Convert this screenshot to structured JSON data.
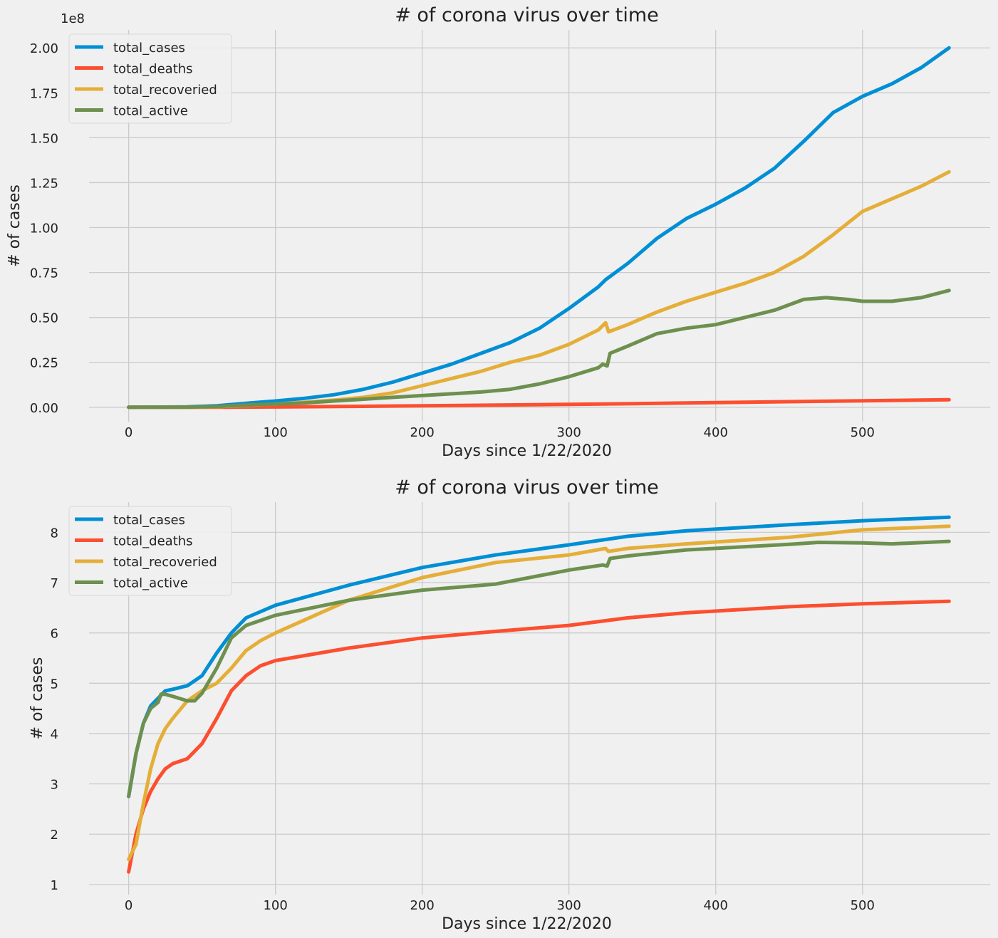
{
  "colors": {
    "background": "#f0f0f0",
    "grid": "#cbcbcb",
    "total_cases": "#008fd5",
    "total_deaths": "#fc4f30",
    "total_recoveried": "#e5ae38",
    "total_active": "#6d904f"
  },
  "chart_data": [
    {
      "type": "line",
      "title": "# of corona virus over time",
      "xlabel": "Days since 1/22/2020",
      "ylabel": "# of cases",
      "offset_text": "1e8",
      "xlim": [
        -27,
        587
      ],
      "ylim": [
        -0.08,
        2.1
      ],
      "xticks": [
        0,
        100,
        200,
        300,
        400,
        500
      ],
      "yticks": [
        0.0,
        0.25,
        0.5,
        0.75,
        1.0,
        1.25,
        1.5,
        1.75,
        2.0
      ],
      "xtick_labels": [
        "0",
        "100",
        "200",
        "300",
        "400",
        "500"
      ],
      "ytick_labels": [
        "0.00",
        "0.25",
        "0.50",
        "0.75",
        "1.00",
        "1.25",
        "1.50",
        "1.75",
        "2.00"
      ],
      "grid": true,
      "legend": "top-left",
      "series": [
        {
          "name": "total_cases",
          "color_key": "total_cases",
          "x": [
            0,
            40,
            60,
            80,
            100,
            120,
            140,
            160,
            180,
            200,
            220,
            240,
            260,
            280,
            300,
            320,
            325,
            340,
            360,
            380,
            400,
            420,
            440,
            460,
            480,
            500,
            520,
            540,
            559
          ],
          "y": [
            0,
            0.002,
            0.008,
            0.022,
            0.035,
            0.05,
            0.07,
            0.1,
            0.14,
            0.19,
            0.24,
            0.3,
            0.36,
            0.44,
            0.55,
            0.67,
            0.71,
            0.8,
            0.94,
            1.05,
            1.13,
            1.22,
            1.33,
            1.48,
            1.64,
            1.73,
            1.8,
            1.89,
            2.0
          ]
        },
        {
          "name": "total_deaths",
          "color_key": "total_deaths",
          "x": [
            0,
            60,
            100,
            200,
            300,
            400,
            500,
            559
          ],
          "y": [
            0,
            0.0005,
            0.0015,
            0.008,
            0.016,
            0.026,
            0.036,
            0.042
          ]
        },
        {
          "name": "total_recoveried",
          "color_key": "total_recoveried",
          "x": [
            0,
            40,
            60,
            80,
            100,
            120,
            140,
            160,
            180,
            200,
            220,
            240,
            260,
            280,
            300,
            320,
            325,
            327,
            340,
            360,
            380,
            400,
            420,
            440,
            460,
            480,
            500,
            520,
            540,
            559
          ],
          "y": [
            0,
            0.0005,
            0.003,
            0.01,
            0.018,
            0.028,
            0.04,
            0.055,
            0.08,
            0.12,
            0.16,
            0.2,
            0.25,
            0.29,
            0.35,
            0.43,
            0.47,
            0.42,
            0.46,
            0.53,
            0.59,
            0.64,
            0.69,
            0.75,
            0.84,
            0.96,
            1.09,
            1.16,
            1.23,
            1.31
          ]
        },
        {
          "name": "total_active",
          "color_key": "total_active",
          "x": [
            0,
            40,
            60,
            80,
            100,
            120,
            140,
            160,
            180,
            200,
            220,
            240,
            260,
            280,
            300,
            320,
            323,
            326,
            328,
            340,
            360,
            380,
            400,
            420,
            440,
            460,
            475,
            490,
            500,
            520,
            540,
            559
          ],
          "y": [
            0,
            0.001,
            0.004,
            0.012,
            0.018,
            0.024,
            0.035,
            0.045,
            0.055,
            0.065,
            0.075,
            0.085,
            0.1,
            0.13,
            0.17,
            0.22,
            0.24,
            0.23,
            0.3,
            0.34,
            0.41,
            0.44,
            0.46,
            0.5,
            0.54,
            0.6,
            0.61,
            0.6,
            0.59,
            0.59,
            0.61,
            0.65
          ]
        }
      ]
    },
    {
      "type": "line",
      "title": "# of corona virus over time",
      "xlabel": "Days since 1/22/2020",
      "ylabel": "# of cases",
      "xlim": [
        -27,
        587
      ],
      "ylim": [
        0.8,
        8.6
      ],
      "xticks": [
        0,
        100,
        200,
        300,
        400,
        500
      ],
      "yticks": [
        1,
        2,
        3,
        4,
        5,
        6,
        7,
        8
      ],
      "xtick_labels": [
        "0",
        "100",
        "200",
        "300",
        "400",
        "500"
      ],
      "ytick_labels": [
        "1",
        "2",
        "3",
        "4",
        "5",
        "6",
        "7",
        "8"
      ],
      "grid": true,
      "legend": "top-left",
      "series": [
        {
          "name": "total_cases",
          "color_key": "total_cases",
          "x": [
            0,
            5,
            10,
            15,
            20,
            25,
            30,
            40,
            50,
            60,
            70,
            80,
            100,
            150,
            200,
            250,
            300,
            340,
            380,
            450,
            500,
            559
          ],
          "y": [
            2.75,
            3.6,
            4.2,
            4.55,
            4.7,
            4.85,
            4.88,
            4.95,
            5.15,
            5.6,
            6.0,
            6.3,
            6.55,
            6.95,
            7.3,
            7.55,
            7.75,
            7.92,
            8.03,
            8.15,
            8.23,
            8.3
          ]
        },
        {
          "name": "total_deaths",
          "color_key": "total_deaths",
          "x": [
            0,
            5,
            10,
            15,
            20,
            25,
            30,
            40,
            50,
            60,
            70,
            80,
            90,
            100,
            150,
            200,
            250,
            300,
            340,
            380,
            450,
            500,
            559
          ],
          "y": [
            1.25,
            2.0,
            2.5,
            2.85,
            3.1,
            3.3,
            3.4,
            3.5,
            3.8,
            4.3,
            4.85,
            5.15,
            5.35,
            5.45,
            5.7,
            5.9,
            6.03,
            6.15,
            6.3,
            6.4,
            6.52,
            6.58,
            6.63
          ]
        },
        {
          "name": "total_recoveried",
          "color_key": "total_recoveried",
          "x": [
            0,
            5,
            10,
            15,
            20,
            25,
            30,
            40,
            50,
            60,
            70,
            80,
            90,
            100,
            150,
            200,
            250,
            300,
            325,
            327,
            340,
            380,
            450,
            500,
            559
          ],
          "y": [
            1.5,
            1.8,
            2.6,
            3.3,
            3.8,
            4.1,
            4.3,
            4.65,
            4.85,
            5.0,
            5.3,
            5.65,
            5.85,
            6.0,
            6.65,
            7.1,
            7.4,
            7.55,
            7.68,
            7.62,
            7.68,
            7.77,
            7.9,
            8.05,
            8.12
          ]
        },
        {
          "name": "total_active",
          "color_key": "total_active",
          "x": [
            0,
            5,
            10,
            15,
            20,
            22,
            25,
            30,
            40,
            45,
            50,
            60,
            70,
            80,
            90,
            100,
            150,
            200,
            250,
            300,
            323,
            326,
            328,
            340,
            380,
            450,
            470,
            500,
            520,
            559
          ],
          "y": [
            2.75,
            3.6,
            4.2,
            4.5,
            4.62,
            4.78,
            4.78,
            4.74,
            4.65,
            4.65,
            4.8,
            5.3,
            5.9,
            6.15,
            6.25,
            6.35,
            6.65,
            6.85,
            6.97,
            7.25,
            7.35,
            7.33,
            7.48,
            7.53,
            7.65,
            7.76,
            7.8,
            7.79,
            7.77,
            7.82
          ]
        }
      ]
    }
  ]
}
